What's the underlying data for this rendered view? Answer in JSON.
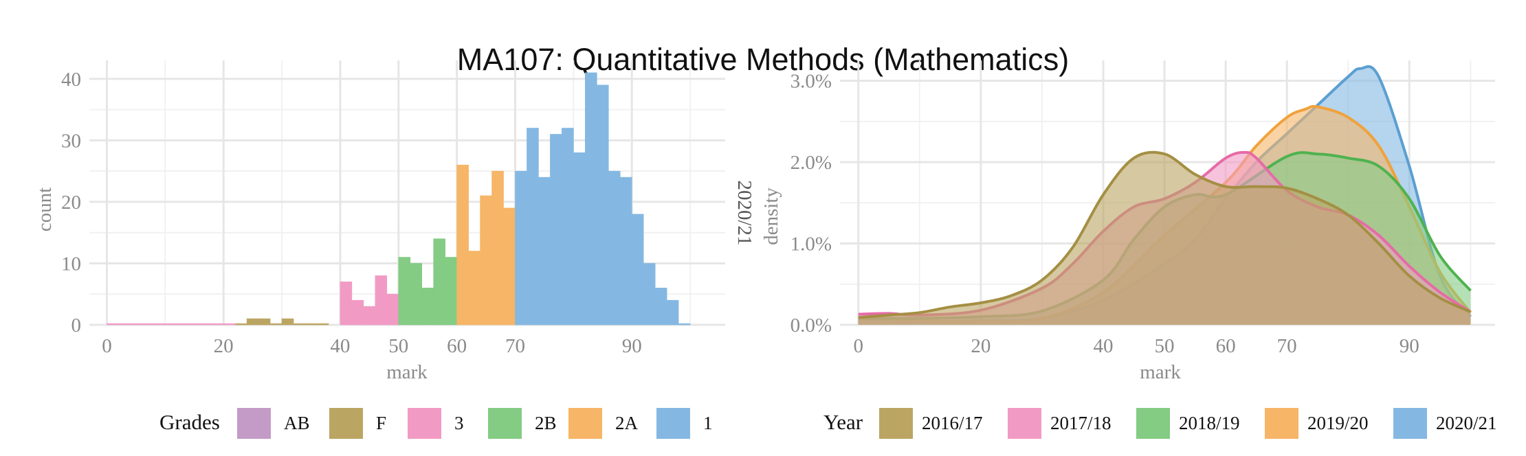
{
  "title": "MA107: Quantitative Methods (Mathematics)",
  "chart_data": [
    {
      "type": "bar",
      "subtype": "histogram",
      "xlabel": "mark",
      "ylabel": "count",
      "xlim": [
        -3,
        106
      ],
      "ylim": [
        0,
        43
      ],
      "xticks": [
        0,
        20,
        40,
        50,
        60,
        70,
        90
      ],
      "yticks": [
        0,
        10,
        20,
        30,
        40
      ],
      "grid": true,
      "bin_width": 2,
      "legend": {
        "title": "Grades",
        "position": "bottom",
        "entries": [
          {
            "label": "AB",
            "color": "#c39bc6"
          },
          {
            "label": "F",
            "color": "#bba562"
          },
          {
            "label": "3",
            "color": "#f19bc4"
          },
          {
            "label": "2B",
            "color": "#84cb84"
          },
          {
            "label": "2A",
            "color": "#f6b567"
          },
          {
            "label": "1",
            "color": "#84b8e2"
          }
        ]
      },
      "series": [
        {
          "name": "AB",
          "bins": []
        },
        {
          "name": "F",
          "bins": [
            [
              22,
              0.2
            ],
            [
              24,
              1
            ],
            [
              26,
              1
            ],
            [
              28,
              0.2
            ],
            [
              30,
              1
            ],
            [
              32,
              0.2
            ],
            [
              34,
              0.2
            ],
            [
              36,
              0.2
            ]
          ]
        },
        {
          "name": "3",
          "bins": [
            [
              0,
              0.2
            ],
            [
              2,
              0.2
            ],
            [
              4,
              0.2
            ],
            [
              6,
              0.2
            ],
            [
              8,
              0.2
            ],
            [
              10,
              0.2
            ],
            [
              12,
              0.2
            ],
            [
              14,
              0.2
            ],
            [
              16,
              0.2
            ],
            [
              18,
              0.2
            ],
            [
              20,
              0.2
            ],
            [
              40,
              7
            ],
            [
              42,
              4
            ],
            [
              44,
              3
            ],
            [
              46,
              8
            ],
            [
              48,
              5
            ]
          ]
        },
        {
          "name": "2B",
          "bins": [
            [
              50,
              11
            ],
            [
              52,
              10
            ],
            [
              54,
              6
            ],
            [
              56,
              14
            ],
            [
              58,
              11
            ]
          ]
        },
        {
          "name": "2A",
          "bins": [
            [
              60,
              26
            ],
            [
              62,
              12
            ],
            [
              64,
              21
            ],
            [
              66,
              25
            ],
            [
              68,
              19
            ]
          ]
        },
        {
          "name": "1",
          "bins": [
            [
              70,
              25
            ],
            [
              72,
              32
            ],
            [
              74,
              24
            ],
            [
              76,
              31
            ],
            [
              78,
              32
            ],
            [
              80,
              28
            ],
            [
              82,
              41
            ],
            [
              84,
              39
            ],
            [
              86,
              25
            ],
            [
              88,
              24
            ],
            [
              90,
              18
            ],
            [
              92,
              10
            ],
            [
              94,
              6
            ],
            [
              96,
              4
            ],
            [
              98,
              0.2
            ]
          ]
        }
      ]
    },
    {
      "type": "area",
      "subtype": "density",
      "strip_label": "2020/21",
      "xlabel": "mark",
      "ylabel": "density",
      "xlim": [
        -3,
        104
      ],
      "ylim": [
        0,
        0.0325
      ],
      "xticks": [
        0,
        20,
        40,
        50,
        60,
        70,
        90
      ],
      "yticks": [
        "0.0%",
        "1.0%",
        "2.0%",
        "3.0%"
      ],
      "ytick_values": [
        0,
        0.01,
        0.02,
        0.03
      ],
      "grid": true,
      "legend": {
        "title": "Year",
        "position": "bottom",
        "entries": [
          {
            "label": "2016/17",
            "color": "#bba562"
          },
          {
            "label": "2017/18",
            "color": "#f19bc4"
          },
          {
            "label": "2018/19",
            "color": "#84cb84"
          },
          {
            "label": "2019/20",
            "color": "#f6b567"
          },
          {
            "label": "2020/21",
            "color": "#84b8e2"
          }
        ]
      },
      "series": [
        {
          "name": "2020/21",
          "line": "#5b9fd1",
          "fill": "#84b8e2",
          "x": [
            0,
            10,
            20,
            30,
            40,
            50,
            55,
            60,
            65,
            70,
            75,
            80,
            82,
            85,
            90,
            95,
            100
          ],
          "y": [
            0.0006,
            0.0004,
            0.0005,
            0.0008,
            0.003,
            0.0075,
            0.0105,
            0.0155,
            0.02,
            0.0235,
            0.027,
            0.0305,
            0.0315,
            0.0305,
            0.0195,
            0.006,
            0.001
          ]
        },
        {
          "name": "2019/20",
          "line": "#f0a23c",
          "fill": "#f6b567",
          "x": [
            0,
            10,
            20,
            30,
            40,
            50,
            60,
            65,
            70,
            73,
            75,
            80,
            85,
            90,
            95,
            100
          ],
          "y": [
            0.0008,
            0.0005,
            0.0004,
            0.0008,
            0.004,
            0.011,
            0.0175,
            0.022,
            0.0255,
            0.0265,
            0.0268,
            0.0255,
            0.022,
            0.0145,
            0.0065,
            0.0015
          ]
        },
        {
          "name": "2018/19",
          "line": "#4fb24f",
          "fill": "#84cb84",
          "x": [
            0,
            10,
            20,
            30,
            40,
            45,
            50,
            55,
            60,
            70,
            75,
            80,
            85,
            90,
            95,
            100
          ],
          "y": [
            0.0008,
            0.0008,
            0.001,
            0.0017,
            0.0055,
            0.0105,
            0.0145,
            0.016,
            0.016,
            0.0207,
            0.021,
            0.0205,
            0.0195,
            0.0155,
            0.0085,
            0.0042
          ]
        },
        {
          "name": "2017/18",
          "line": "#e66ba7",
          "fill": "#f19bc4",
          "x": [
            0,
            5,
            10,
            20,
            30,
            35,
            40,
            45,
            50,
            55,
            60,
            63,
            65,
            70,
            75,
            80,
            85,
            90,
            95,
            100
          ],
          "y": [
            0.0013,
            0.0014,
            0.0012,
            0.0018,
            0.0045,
            0.0075,
            0.0115,
            0.0145,
            0.0155,
            0.0175,
            0.0205,
            0.0212,
            0.0205,
            0.0165,
            0.0145,
            0.0135,
            0.011,
            0.0072,
            0.004,
            0.0016
          ]
        },
        {
          "name": "2016/17",
          "line": "#a48f43",
          "fill": "#bba562",
          "x": [
            0,
            5,
            10,
            15,
            20,
            25,
            30,
            35,
            40,
            45,
            50,
            55,
            60,
            65,
            70,
            75,
            80,
            85,
            90,
            95,
            100
          ],
          "y": [
            0.0009,
            0.0012,
            0.0015,
            0.0022,
            0.0027,
            0.0036,
            0.0055,
            0.0095,
            0.016,
            0.0205,
            0.021,
            0.0185,
            0.017,
            0.017,
            0.0168,
            0.0155,
            0.0135,
            0.01,
            0.006,
            0.0033,
            0.0016
          ]
        }
      ]
    }
  ]
}
